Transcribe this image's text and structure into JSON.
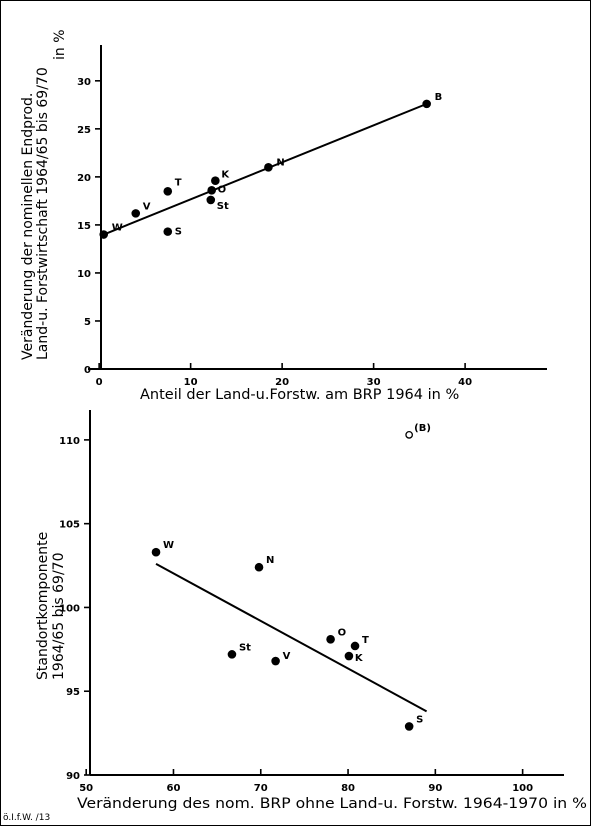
{
  "chart_data": [
    {
      "type": "scatter",
      "xlabel": "Anteil der Land-u.Forstw. am BRP 1964 in %",
      "ylabel_lines": [
        "Veränderung der nominellen Endprod.",
        "Land-u. Forstwirtschaft 1964/65 bis 69/70",
        "in %"
      ],
      "xlim": [
        -1,
        46
      ],
      "ylim": [
        0,
        33
      ],
      "xticks": [
        0,
        10,
        20,
        30,
        40
      ],
      "yticks": [
        0,
        5,
        10,
        15,
        20,
        25,
        30
      ],
      "grid": false,
      "points": [
        {
          "label": "W",
          "x": 0.5,
          "y": 14.0
        },
        {
          "label": "V",
          "x": 4.0,
          "y": 16.2
        },
        {
          "label": "T",
          "x": 7.5,
          "y": 18.5
        },
        {
          "label": "S",
          "x": 7.5,
          "y": 14.3
        },
        {
          "label": "O",
          "x": 12.3,
          "y": 18.6
        },
        {
          "label": "St",
          "x": 12.2,
          "y": 17.6
        },
        {
          "label": "K",
          "x": 12.7,
          "y": 19.6
        },
        {
          "label": "N",
          "x": 18.5,
          "y": 21.0
        },
        {
          "label": "B",
          "x": 35.8,
          "y": 27.6
        }
      ],
      "trend": {
        "x": [
          0.5,
          35.8
        ],
        "y": [
          14.0,
          27.6
        ]
      }
    },
    {
      "type": "scatter",
      "xlabel": "Veränderung des nom. BRP ohne Land-u. Forstw. 1964-1970 in %",
      "ylabel_lines": [
        "Standortkomponente",
        "1964/65 bis 69/70"
      ],
      "xlim": [
        47,
        106
      ],
      "ylim": [
        90,
        112.5
      ],
      "xticks": [
        50,
        60,
        70,
        80,
        90,
        100
      ],
      "yticks": [
        90,
        95,
        100,
        105,
        110
      ],
      "grid": false,
      "points": [
        {
          "label": "W",
          "x": 58.0,
          "y": 103.3,
          "open": false
        },
        {
          "label": "N",
          "x": 69.8,
          "y": 102.4,
          "open": false
        },
        {
          "label": "St",
          "x": 66.7,
          "y": 97.2,
          "open": false
        },
        {
          "label": "V",
          "x": 71.7,
          "y": 96.8,
          "open": false
        },
        {
          "label": "O",
          "x": 78.0,
          "y": 98.1,
          "open": false
        },
        {
          "label": "T",
          "x": 80.8,
          "y": 97.7,
          "open": false
        },
        {
          "label": "K",
          "x": 80.1,
          "y": 97.1,
          "open": false
        },
        {
          "label": "S",
          "x": 87.0,
          "y": 92.9,
          "open": false
        },
        {
          "label": "(B)",
          "x": 87.0,
          "y": 110.3,
          "open": true
        }
      ],
      "trend": {
        "x": [
          58.0,
          89.0
        ],
        "y": [
          102.6,
          93.8
        ]
      }
    }
  ],
  "credit": "ö.I.f.W. /13"
}
